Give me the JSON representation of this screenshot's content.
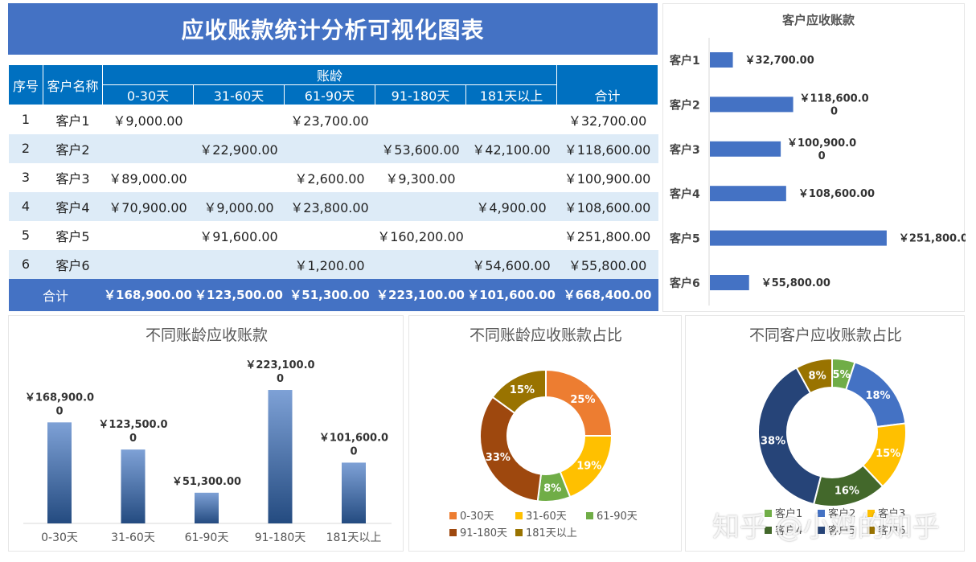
{
  "title": "应收账款统计分析可视化图表",
  "table": {
    "h_index": "序号",
    "h_customer": "客户名称",
    "h_aging": "账龄",
    "buckets": [
      "0-30天",
      "31-60天",
      "61-90天",
      "91-180天",
      "181天以上"
    ],
    "h_total": "合计",
    "rows": [
      {
        "idx": "1",
        "name": "客户1",
        "cells": [
          "￥9,000.00",
          "",
          "￥23,700.00",
          "",
          ""
        ],
        "total": "￥32,700.00"
      },
      {
        "idx": "2",
        "name": "客户2",
        "cells": [
          "",
          "￥22,900.00",
          "",
          "￥53,600.00",
          "￥42,100.00"
        ],
        "total": "￥118,600.00"
      },
      {
        "idx": "3",
        "name": "客户3",
        "cells": [
          "￥89,000.00",
          "",
          "￥2,600.00",
          "￥9,300.00",
          ""
        ],
        "total": "￥100,900.00"
      },
      {
        "idx": "4",
        "name": "客户4",
        "cells": [
          "￥70,900.00",
          "￥9,000.00",
          "￥23,800.00",
          "",
          "￥4,900.00"
        ],
        "total": "￥108,600.00"
      },
      {
        "idx": "5",
        "name": "客户5",
        "cells": [
          "",
          "￥91,600.00",
          "",
          "￥160,200.00",
          ""
        ],
        "total": "￥251,800.00"
      },
      {
        "idx": "6",
        "name": "客户6",
        "cells": [
          "",
          "",
          "￥1,200.00",
          "",
          "￥54,600.00"
        ],
        "total": "￥55,800.00"
      }
    ],
    "footer_label": "合计",
    "footer": [
      "￥168,900.00",
      "￥123,500.00",
      "￥51,300.00",
      "￥223,100.00",
      "￥101,600.00"
    ],
    "footer_total": "￥668,400.00"
  },
  "colors": {
    "header": "#0070c0",
    "banner": "#4472c4",
    "stripe": "#ddebf7",
    "bar": "#4472c4"
  },
  "chart_data": [
    {
      "type": "bar",
      "orientation": "horizontal",
      "title": "客户应收账款",
      "categories": [
        "客户1",
        "客户2",
        "客户3",
        "客户4",
        "客户5",
        "客户6"
      ],
      "values": [
        32700,
        118600,
        100900,
        108600,
        251800,
        55800
      ],
      "labels": [
        [
          "￥32,700.00"
        ],
        [
          "￥118,600.0",
          "0"
        ],
        [
          "￥100,900.0",
          "0"
        ],
        [
          "￥108,600.00"
        ],
        [
          "￥251,800.00"
        ],
        [
          "￥55,800.00"
        ]
      ],
      "xlim": [
        0,
        300000
      ],
      "color": "#4472c4"
    },
    {
      "type": "bar",
      "title": "不同账龄应收账款",
      "categories": [
        "0-30天",
        "31-60天",
        "61-90天",
        "91-180天",
        "181天以上"
      ],
      "values": [
        168900,
        123500,
        51300,
        223100,
        101600
      ],
      "labels": [
        [
          "￥168,900.0",
          "0"
        ],
        [
          "￥123,500.0",
          "0"
        ],
        [
          "￥51,300.00"
        ],
        [
          "￥223,100.0",
          "0"
        ],
        [
          "￥101,600.0",
          "0"
        ]
      ],
      "ylim": [
        0,
        250000
      ],
      "color_top": "#7ea1d6",
      "color_bottom": "#244b80"
    },
    {
      "type": "pie",
      "donut": true,
      "title": "不同账龄应收账款占比",
      "categories": [
        "0-30天",
        "31-60天",
        "61-90天",
        "91-180天",
        "181天以上"
      ],
      "values": [
        25,
        19,
        8,
        33,
        15
      ],
      "labels": [
        "25%",
        "19%",
        "8%",
        "33%",
        "15%"
      ],
      "colors": [
        "#ed7d31",
        "#ffc000",
        "#70ad47",
        "#9e480e",
        "#997300"
      ],
      "legend": "bottom"
    },
    {
      "type": "pie",
      "donut": true,
      "title": "不同客户应收账款占比",
      "categories": [
        "客户1",
        "客户2",
        "客户3",
        "客户4",
        "客户5",
        "客户6"
      ],
      "values": [
        5,
        18,
        15,
        16,
        38,
        8
      ],
      "labels": [
        "5%",
        "18%",
        "15%",
        "16%",
        "38%",
        "8%"
      ],
      "colors": [
        "#70ad47",
        "#4472c4",
        "#ffc000",
        "#43682b",
        "#264478",
        "#997300"
      ],
      "legend": "bottom"
    }
  ],
  "watermark": "知乎 @小鸡的知乎"
}
